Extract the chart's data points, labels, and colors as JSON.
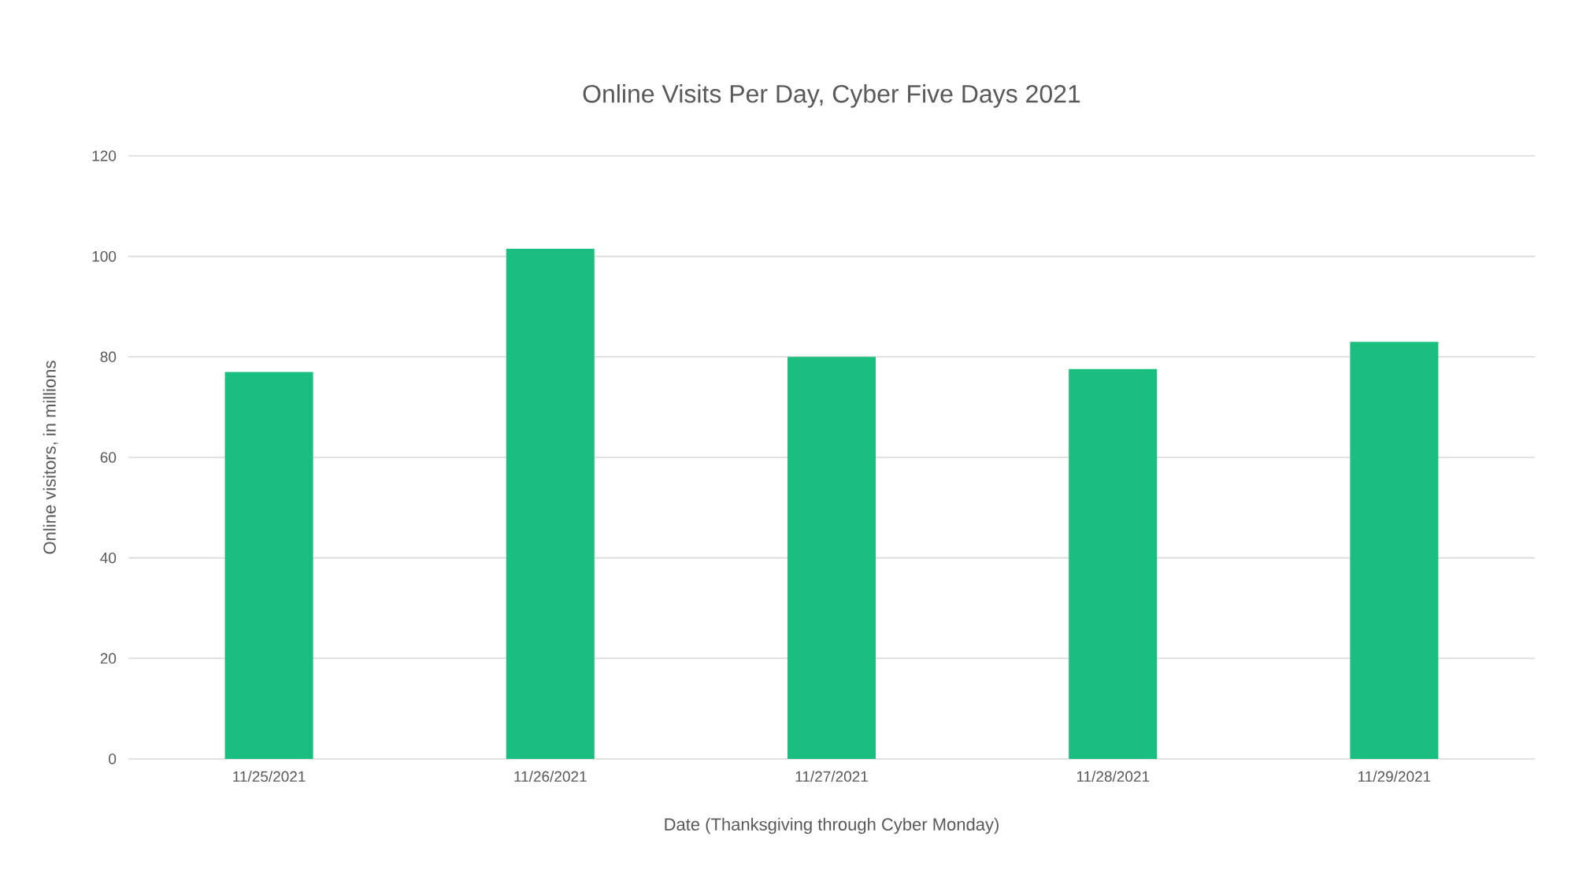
{
  "chart_data": {
    "type": "bar",
    "title": "Online Visits Per Day, Cyber Five Days 2021",
    "xlabel": "Date (Thanksgiving through Cyber Monday)",
    "ylabel": "Online visitors, in millions",
    "categories": [
      "11/25/2021",
      "11/26/2021",
      "11/27/2021",
      "11/28/2021",
      "11/29/2021"
    ],
    "values": [
      77,
      101.5,
      80,
      77.6,
      83
    ],
    "color": "#1abf80",
    "ylim": [
      0,
      120
    ],
    "yticks": [
      0,
      20,
      40,
      60,
      80,
      100,
      120
    ],
    "grid": "y"
  }
}
